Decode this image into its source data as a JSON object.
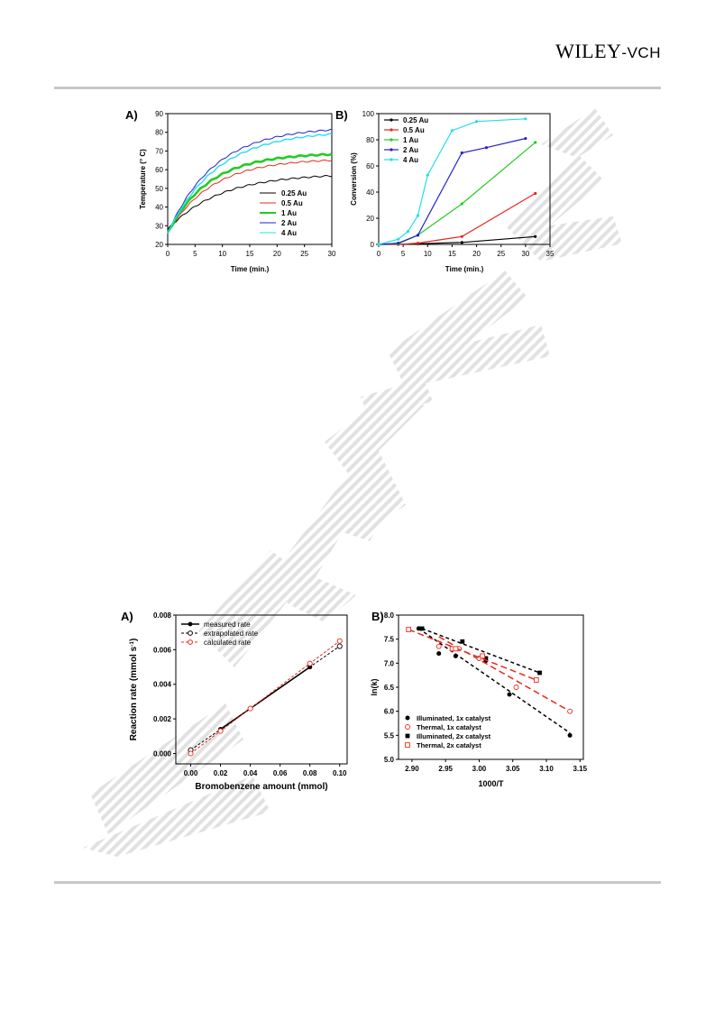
{
  "header": {
    "brand_main": "WILEY",
    "brand_sep": "-",
    "brand_sub": "VCH"
  },
  "watermark": {
    "color": "#d8d8d8"
  },
  "figure1": {
    "panel_a": {
      "label": "A)",
      "chart_data": {
        "type": "line",
        "xlabel": "Time (min.)",
        "ylabel": "Temperature (° C)",
        "xlim": [
          0,
          30
        ],
        "ylim": [
          20,
          90
        ],
        "xticks": [
          0,
          5,
          10,
          15,
          20,
          25,
          30
        ],
        "yticks": [
          20,
          30,
          40,
          50,
          60,
          70,
          80,
          90
        ],
        "legend_position": "bottom-right",
        "series": [
          {
            "name": "0.25 Au",
            "color": "#000000",
            "width": 1.0,
            "T0": 28,
            "Tmax": 58,
            "tau": 9.5
          },
          {
            "name": "0.5 Au",
            "color": "#e8281e",
            "width": 1.0,
            "T0": 26,
            "Tmax": 66,
            "tau": 8.0
          },
          {
            "name": "1 Au",
            "color": "#22cc22",
            "width": 2.6,
            "T0": 26,
            "Tmax": 69,
            "tau": 7.5
          },
          {
            "name": "2 Au",
            "color": "#2222cc",
            "width": 1.0,
            "T0": 26,
            "Tmax": 83,
            "tau": 8.5
          },
          {
            "name": "4 Au",
            "color": "#22e0e8",
            "width": 1.4,
            "T0": 26,
            "Tmax": 81,
            "tau": 9.0
          }
        ]
      }
    },
    "panel_b": {
      "label": "B)",
      "chart_data": {
        "type": "line",
        "xlabel": "Time (min.)",
        "ylabel": "Conversion (%)",
        "xlim": [
          0,
          35
        ],
        "ylim": [
          0,
          100
        ],
        "xticks": [
          0,
          5,
          10,
          15,
          20,
          25,
          30,
          35
        ],
        "yticks": [
          0,
          20,
          40,
          60,
          80,
          100
        ],
        "legend_position": "top-left",
        "series": [
          {
            "name": "0.25 Au",
            "color": "#000000",
            "x": [
              0,
              4,
              8,
              17,
              32
            ],
            "y": [
              0,
              0,
              0.5,
              1.5,
              6
            ]
          },
          {
            "name": "0.5 Au",
            "color": "#e8281e",
            "x": [
              0,
              4,
              8,
              17,
              32
            ],
            "y": [
              0,
              0,
              1,
              6,
              39
            ]
          },
          {
            "name": "1 Au",
            "color": "#22cc22",
            "x": [
              0,
              4,
              8,
              17,
              32
            ],
            "y": [
              0,
              0.5,
              7,
              31,
              78
            ]
          },
          {
            "name": "2 Au",
            "color": "#2222cc",
            "x": [
              0,
              4,
              8,
              17,
              22,
              30
            ],
            "y": [
              0,
              1,
              7,
              70,
              74,
              81
            ]
          },
          {
            "name": "4 Au",
            "color": "#22e0e8",
            "x": [
              0,
              4,
              6,
              8,
              10,
              15,
              20,
              30
            ],
            "y": [
              0,
              4,
              10,
              22,
              53,
              87,
              94,
              96
            ]
          }
        ]
      }
    }
  },
  "figure2": {
    "panel_a": {
      "label": "A)",
      "chart_data": {
        "type": "line",
        "xlabel": "Bromobenzene amount (mmol)",
        "ylabel": "Reaction rate (mmol s",
        "ylabel_sup": "-1",
        "ylabel_end": ")",
        "xlim": [
          -0.01,
          0.105
        ],
        "ylim": [
          -0.0006,
          0.008
        ],
        "xticks": [
          "0.00",
          "0.02",
          "0.04",
          "0.06",
          "0.08",
          "0.10"
        ],
        "yticks": [
          "0.000",
          "0.002",
          "0.004",
          "0.006",
          "0.008"
        ],
        "legend_position": "top-left",
        "series": [
          {
            "name": "measured rate",
            "color": "#000000",
            "dash": "",
            "marker": "filled",
            "x": [
              0.02,
              0.04,
              0.08
            ],
            "y": [
              0.0014,
              0.0026,
              0.005
            ]
          },
          {
            "name": "extrapolated rate",
            "color": "#000000",
            "dash": "3,2",
            "marker": "open",
            "x": [
              0,
              0.1
            ],
            "y": [
              0.0002,
              0.0062
            ]
          },
          {
            "name": "calculated rate",
            "color": "#e8281e",
            "dash": "3,2",
            "marker": "open",
            "x": [
              0,
              0.02,
              0.04,
              0.08,
              0.1
            ],
            "y": [
              0.0,
              0.0013,
              0.0026,
              0.0052,
              0.0065
            ]
          }
        ]
      }
    },
    "panel_b": {
      "label": "B)",
      "chart_data": {
        "type": "scatter",
        "xlabel": "1000/T",
        "ylabel": "ln(k)",
        "xlim": [
          2.88,
          3.155
        ],
        "ylim": [
          5.0,
          8.0
        ],
        "xticks": [
          "2.90",
          "2.95",
          "3.00",
          "3.05",
          "3.10",
          "3.15"
        ],
        "yticks": [
          "5.0",
          "5.5",
          "6.0",
          "6.5",
          "7.0",
          "7.5",
          "8.0"
        ],
        "legend_position": "bottom-left",
        "series": [
          {
            "name": "Illuminated, 1x catalyst",
            "color": "#000000",
            "marker": "filled-circle",
            "x": [
              2.91,
              2.94,
              2.965,
              3.01,
              3.045,
              3.135
            ],
            "y": [
              7.72,
              7.2,
              7.15,
              7.05,
              6.35,
              5.5
            ],
            "fit": [
              [
                2.91,
                7.72
              ],
              [
                3.135,
                5.55
              ]
            ]
          },
          {
            "name": "Thermal, 1x catalyst",
            "color": "#e8281e",
            "marker": "open-circle",
            "x": [
              2.94,
              2.97,
              3.0,
              3.055,
              3.135
            ],
            "y": [
              7.35,
              7.3,
              7.1,
              6.5,
              6.0
            ],
            "fit": [
              [
                2.94,
                7.55
              ],
              [
                3.135,
                6.0
              ]
            ]
          },
          {
            "name": "Illuminated, 2x catalyst",
            "color": "#000000",
            "marker": "filled-square",
            "x": [
              2.915,
              2.975,
              3.01,
              3.09
            ],
            "y": [
              7.72,
              7.45,
              7.1,
              6.8
            ],
            "fit": [
              [
                2.915,
                7.72
              ],
              [
                3.09,
                6.8
              ]
            ]
          },
          {
            "name": "Thermal, 2x catalyst",
            "color": "#e8281e",
            "marker": "open-square",
            "x": [
              2.895,
              2.96,
              2.965,
              3.005,
              3.085
            ],
            "y": [
              7.7,
              7.3,
              7.3,
              7.15,
              6.65
            ],
            "fit": [
              [
                2.895,
                7.7
              ],
              [
                3.085,
                6.65
              ]
            ]
          }
        ]
      }
    }
  }
}
